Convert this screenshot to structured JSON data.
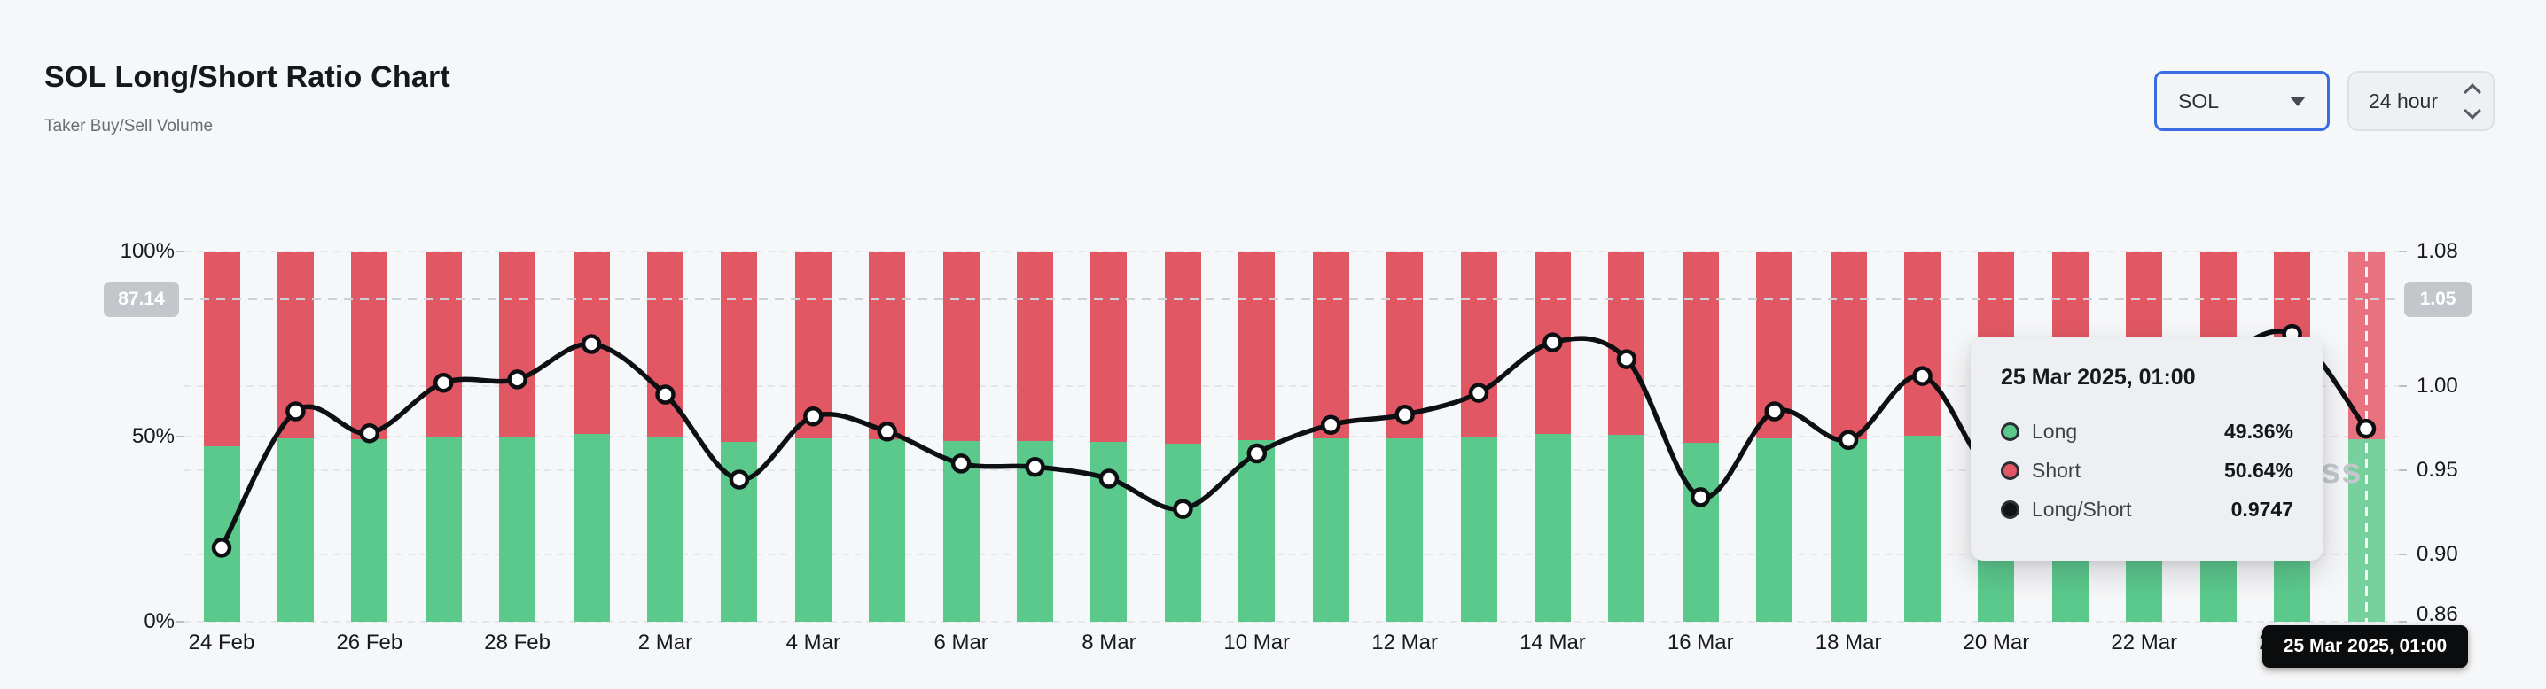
{
  "header": {
    "title": "SOL Long/Short Ratio Chart",
    "subtitle": "Taker Buy/Sell Volume"
  },
  "controls": {
    "symbol_select": {
      "value": "SOL"
    },
    "interval_select": {
      "value": "24 hour"
    }
  },
  "watermark": {
    "visible_text": "ss"
  },
  "colors": {
    "long": "#5bc98c",
    "long_highlight": "#76d19c",
    "short": "#e15864",
    "short_highlight": "#e8737e",
    "line": "#0d0f12",
    "accent_blue": "#3a6ce1",
    "page_bg": "#f6f7f8",
    "badge_gray": "#c3c6cb",
    "badge_black": "#0b0c0e"
  },
  "chart_data": {
    "type": "stacked-bar+line",
    "title": "SOL Long/Short Ratio Chart",
    "categories": [
      "24 Feb",
      "25 Feb",
      "26 Feb",
      "27 Feb",
      "28 Feb",
      "1 Mar",
      "2 Mar",
      "3 Mar",
      "4 Mar",
      "5 Mar",
      "6 Mar",
      "7 Mar",
      "8 Mar",
      "9 Mar",
      "10 Mar",
      "11 Mar",
      "12 Mar",
      "13 Mar",
      "14 Mar",
      "15 Mar",
      "16 Mar",
      "17 Mar",
      "18 Mar",
      "19 Mar",
      "20 Mar",
      "21 Mar",
      "22 Mar",
      "23 Mar",
      "24 Mar",
      "25 Mar"
    ],
    "x_tick_labels": [
      "24 Feb",
      "26 Feb",
      "28 Feb",
      "2 Mar",
      "4 Mar",
      "6 Mar",
      "8 Mar",
      "10 Mar",
      "12 Mar",
      "14 Mar",
      "16 Mar",
      "18 Mar",
      "20 Mar",
      "22 Mar",
      "24 Mar"
    ],
    "left_axis": {
      "ticks": [
        "100%",
        "50%",
        "0%"
      ],
      "values": [
        100,
        50,
        0
      ],
      "range": [
        0,
        100
      ]
    },
    "right_axis": {
      "ticks": [
        "1.08",
        "1.00",
        "0.95",
        "0.90",
        "0.86"
      ],
      "values": [
        1.08,
        1.0,
        0.95,
        0.9,
        0.86
      ],
      "range": [
        0.86,
        1.08
      ]
    },
    "grid": "horizontal-dashed",
    "legend_position": "none",
    "series": [
      {
        "name": "Long",
        "type": "bar",
        "stack": true,
        "unit": "%",
        "color": "#5bc98c",
        "values": [
          47.48,
          49.62,
          49.29,
          50.05,
          50.1,
          50.62,
          49.87,
          48.57,
          49.55,
          49.32,
          48.82,
          48.77,
          48.59,
          48.11,
          48.98,
          49.42,
          49.57,
          49.9,
          50.64,
          50.4,
          48.29,
          49.62,
          49.19,
          50.15,
          48.59,
          48.85,
          49.62,
          50.37,
          50.76,
          49.36
        ]
      },
      {
        "name": "Short",
        "type": "bar",
        "stack": true,
        "unit": "%",
        "color": "#e15864",
        "values": [
          52.52,
          50.38,
          50.71,
          49.95,
          49.9,
          49.38,
          50.13,
          51.43,
          50.45,
          50.68,
          51.18,
          51.23,
          51.41,
          51.89,
          51.02,
          50.58,
          50.43,
          50.1,
          49.36,
          49.6,
          51.71,
          50.38,
          50.81,
          49.85,
          51.41,
          51.15,
          50.38,
          49.63,
          49.24,
          50.64
        ]
      },
      {
        "name": "Long/Short",
        "type": "line",
        "color": "#0d0f12",
        "values": [
          0.904,
          0.985,
          0.972,
          1.002,
          1.004,
          1.025,
          0.995,
          0.9445,
          0.982,
          0.973,
          0.954,
          0.952,
          0.945,
          0.927,
          0.96,
          0.977,
          0.983,
          0.996,
          1.026,
          1.016,
          0.934,
          0.985,
          0.968,
          1.006,
          0.945,
          0.955,
          0.985,
          1.015,
          1.031,
          0.9747
        ]
      }
    ],
    "highlighted_index": 29,
    "crosshair": {
      "left_badge": "87.14",
      "right_badge": "1.05",
      "x_label": "25 Mar 2025, 01:00",
      "x_index": 29
    },
    "tooltip": {
      "title": "25 Mar 2025, 01:00",
      "rows": [
        {
          "label": "Long",
          "value": "49.36%",
          "color": "#5bc98c"
        },
        {
          "label": "Short",
          "value": "50.64%",
          "color": "#e15864"
        },
        {
          "label": "Long/Short",
          "value": "0.9747",
          "color": "#101214"
        }
      ]
    }
  }
}
